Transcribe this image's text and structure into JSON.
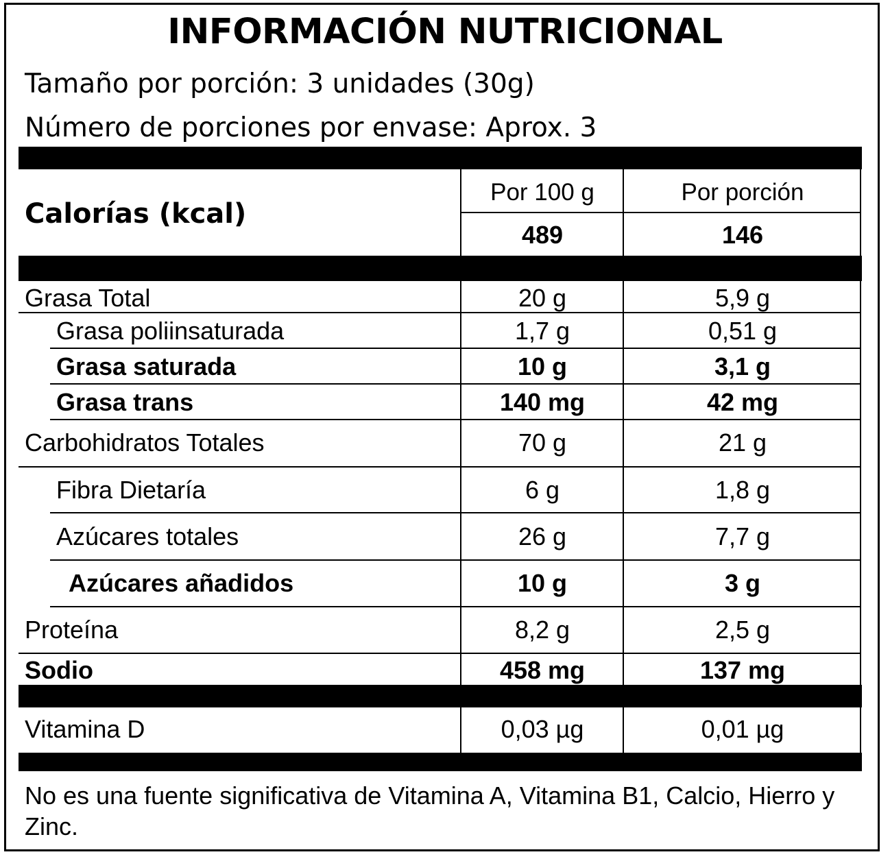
{
  "title": "INFORMACIÓN NUTRICIONAL",
  "serving_size": "Tamaño por porción: 3 unidades (30g)",
  "servings_per_container": "Número de porciones por envase: Aprox. 3",
  "calories": {
    "label": "Calorías (kcal)",
    "col1_header": "Por 100 g",
    "col2_header": "Por porción",
    "per_100g": "489",
    "per_serving": "146"
  },
  "nutrients": [
    {
      "name": "Grasa Total",
      "per_100g": "20 g",
      "per_serving": "5,9 g"
    },
    {
      "name": "Grasa poliinsaturada",
      "per_100g": "1,7 g",
      "per_serving": "0,51 g"
    },
    {
      "name": "Grasa saturada",
      "per_100g": "10 g",
      "per_serving": "3,1 g"
    },
    {
      "name": "Grasa trans",
      "per_100g": "140 mg",
      "per_serving": "42 mg"
    },
    {
      "name": "Carbohidratos Totales",
      "per_100g": "70 g",
      "per_serving": "21 g"
    },
    {
      "name": "Fibra Dietaría",
      "per_100g": "6 g",
      "per_serving": "1,8 g"
    },
    {
      "name": "Azúcares totales",
      "per_100g": "26 g",
      "per_serving": "7,7 g"
    },
    {
      "name": "Azúcares añadidos",
      "per_100g": "10 g",
      "per_serving": "3 g"
    },
    {
      "name": "Proteína",
      "per_100g": "8,2 g",
      "per_serving": "2,5 g"
    },
    {
      "name": "Sodio",
      "per_100g": "458 mg",
      "per_serving": "137 mg"
    }
  ],
  "vitamins": [
    {
      "name": "Vitamina D",
      "per_100g": "0,03 µg",
      "per_serving": "0,01 µg"
    }
  ],
  "footnote": "No es una fuente significativa de Vitamina A, Vitamina B1, Calcio, Hierro y Zinc."
}
